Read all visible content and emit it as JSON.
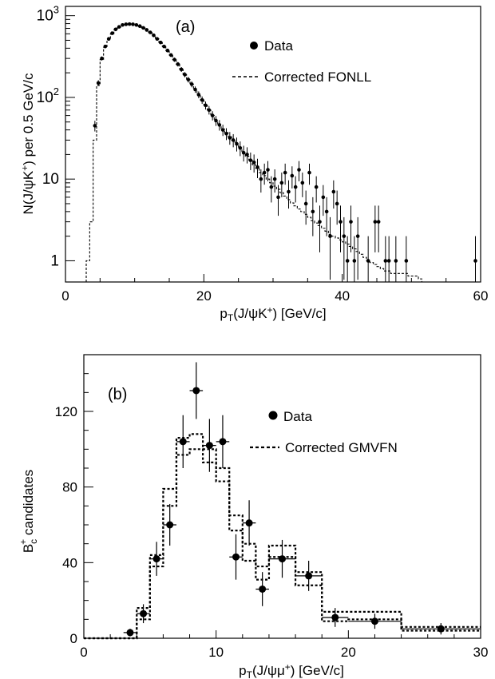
{
  "chart_data": [
    {
      "type": "scatter",
      "panel_label": "(a)",
      "xlabel": "p_T(J/ψK⁺) [GeV/c]",
      "ylabel": "N(J/ψK⁺) per 0.5 GeV/c",
      "xlim": [
        0,
        60
      ],
      "ylim": [
        0.55,
        1300
      ],
      "yscale": "log",
      "x_ticks": [
        0,
        20,
        40,
        60
      ],
      "y_ticks": [
        {
          "value": 1,
          "label": "1"
        },
        {
          "value": 10,
          "label": "10"
        },
        {
          "value": 100,
          "label": "10²"
        },
        {
          "value": 1000,
          "label": "10³"
        }
      ],
      "grid": false,
      "legend_position": "top-right",
      "series": [
        {
          "name": "Data",
          "style": "points",
          "points": [
            [
              4.25,
              45
            ],
            [
              4.75,
              150
            ],
            [
              5.25,
              300
            ],
            [
              5.75,
              420
            ],
            [
              6.25,
              520
            ],
            [
              6.75,
              610
            ],
            [
              7.25,
              680
            ],
            [
              7.75,
              730
            ],
            [
              8.25,
              770
            ],
            [
              8.75,
              785
            ],
            [
              9.25,
              790
            ],
            [
              9.75,
              785
            ],
            [
              10.25,
              770
            ],
            [
              10.75,
              745
            ],
            [
              11.25,
              710
            ],
            [
              11.75,
              670
            ],
            [
              12.25,
              625
            ],
            [
              12.75,
              575
            ],
            [
              13.25,
              520
            ],
            [
              13.75,
              470
            ],
            [
              14.25,
              420
            ],
            [
              14.75,
              375
            ],
            [
              15.25,
              330
            ],
            [
              15.75,
              290
            ],
            [
              16.25,
              255
            ],
            [
              16.75,
              220
            ],
            [
              17.25,
              190
            ],
            [
              17.75,
              165
            ],
            [
              18.25,
              145
            ],
            [
              18.75,
              125
            ],
            [
              19.25,
              108
            ],
            [
              19.75,
              93
            ],
            [
              20.25,
              80
            ],
            [
              20.75,
              70
            ],
            [
              21.25,
              60
            ],
            [
              21.75,
              52
            ],
            [
              22.25,
              46
            ],
            [
              22.75,
              40
            ],
            [
              23.25,
              36
            ],
            [
              23.75,
              32
            ],
            [
              24.25,
              30
            ],
            [
              24.75,
              27
            ],
            [
              25.25,
              24
            ],
            [
              25.75,
              21
            ],
            [
              26.25,
              20
            ],
            [
              26.75,
              17
            ],
            [
              27.25,
              16
            ],
            [
              27.75,
              14
            ],
            [
              28.25,
              10
            ],
            [
              28.75,
              12
            ],
            [
              29.25,
              13
            ],
            [
              29.75,
              8
            ],
            [
              30.25,
              10
            ],
            [
              30.75,
              6
            ],
            [
              31.25,
              9
            ],
            [
              31.75,
              12
            ],
            [
              32.25,
              7
            ],
            [
              32.75,
              11
            ],
            [
              33.25,
              8
            ],
            [
              33.75,
              13
            ],
            [
              34.25,
              9
            ],
            [
              34.75,
              5
            ],
            [
              35.25,
              12
            ],
            [
              35.75,
              4
            ],
            [
              36.25,
              8
            ],
            [
              36.75,
              3
            ],
            [
              37.25,
              6
            ],
            [
              37.75,
              4
            ],
            [
              38.25,
              2
            ],
            [
              38.75,
              7
            ],
            [
              39.25,
              5
            ],
            [
              39.75,
              3
            ],
            [
              40.25,
              2
            ],
            [
              40.75,
              1
            ],
            [
              41.25,
              3
            ],
            [
              41.75,
              1
            ],
            [
              42.25,
              2
            ],
            [
              43.75,
              1
            ],
            [
              44.75,
              3
            ],
            [
              45.25,
              3
            ],
            [
              46.25,
              1
            ],
            [
              46.75,
              1
            ],
            [
              47.75,
              1
            ],
            [
              49.25,
              1
            ],
            [
              59.25,
              1
            ]
          ]
        },
        {
          "name": "Corrected FONLL",
          "style": "dashed-step",
          "bin_width": 0.5,
          "bins": [
            [
              3.0,
              1.0
            ],
            [
              3.5,
              3.0
            ],
            [
              4.0,
              30
            ],
            [
              4.5,
              140
            ],
            [
              5.0,
              290
            ],
            [
              5.5,
              410
            ],
            [
              6.0,
              510
            ],
            [
              6.5,
              600
            ],
            [
              7.0,
              670
            ],
            [
              7.5,
              725
            ],
            [
              8.0,
              765
            ],
            [
              8.5,
              780
            ],
            [
              9.0,
              790
            ],
            [
              9.5,
              785
            ],
            [
              10.0,
              770
            ],
            [
              10.5,
              745
            ],
            [
              11.0,
              710
            ],
            [
              11.5,
              670
            ],
            [
              12.0,
              625
            ],
            [
              12.5,
              575
            ],
            [
              13.0,
              520
            ],
            [
              13.5,
              470
            ],
            [
              14.0,
              420
            ],
            [
              14.5,
              375
            ],
            [
              15.0,
              330
            ],
            [
              15.5,
              290
            ],
            [
              16.0,
              255
            ],
            [
              16.5,
              220
            ],
            [
              17.0,
              190
            ],
            [
              17.5,
              165
            ],
            [
              18.0,
              145
            ],
            [
              18.5,
              125
            ],
            [
              19.0,
              108
            ],
            [
              19.5,
              93
            ],
            [
              20.0,
              80
            ],
            [
              20.5,
              70
            ],
            [
              21.0,
              60
            ],
            [
              21.5,
              52
            ],
            [
              22.0,
              46
            ],
            [
              22.5,
              41
            ],
            [
              23.0,
              37
            ],
            [
              23.5,
              33
            ],
            [
              24.0,
              30
            ],
            [
              24.5,
              27
            ],
            [
              25.0,
              24
            ],
            [
              25.5,
              21
            ],
            [
              26.0,
              19
            ],
            [
              26.5,
              17
            ],
            [
              27.0,
              15
            ],
            [
              27.5,
              13.5
            ],
            [
              28.0,
              12
            ],
            [
              28.5,
              11
            ],
            [
              29.0,
              10
            ],
            [
              29.5,
              9
            ],
            [
              30.0,
              8.2
            ],
            [
              30.5,
              7.5
            ],
            [
              31.0,
              6.8
            ],
            [
              31.5,
              6.2
            ],
            [
              32.0,
              5.6
            ],
            [
              32.5,
              5.1
            ],
            [
              33.0,
              4.7
            ],
            [
              33.5,
              4.3
            ],
            [
              34.0,
              4.0
            ],
            [
              34.5,
              3.7
            ],
            [
              35.0,
              3.4
            ],
            [
              35.5,
              3.1
            ],
            [
              36.0,
              2.9
            ],
            [
              36.5,
              2.7
            ],
            [
              37.0,
              2.5
            ],
            [
              37.5,
              2.3
            ],
            [
              38.0,
              2.1
            ],
            [
              38.5,
              2.0
            ],
            [
              39.0,
              1.9
            ],
            [
              39.5,
              1.8
            ],
            [
              40.0,
              1.7
            ],
            [
              40.5,
              1.6
            ],
            [
              41.0,
              1.5
            ],
            [
              41.5,
              1.4
            ],
            [
              42.0,
              1.3
            ],
            [
              42.5,
              1.2
            ],
            [
              43.0,
              1.1
            ],
            [
              43.5,
              1.0
            ],
            [
              44.0,
              0.95
            ],
            [
              44.5,
              0.9
            ],
            [
              45.0,
              0.85
            ],
            [
              45.5,
              0.8
            ],
            [
              46.0,
              0.75
            ],
            [
              46.5,
              0.75
            ],
            [
              47.0,
              0.7
            ],
            [
              47.5,
              0.7
            ],
            [
              48.0,
              0.7
            ],
            [
              48.5,
              0.7
            ],
            [
              49.0,
              0.7
            ],
            [
              49.5,
              0.65
            ],
            [
              50.0,
              0.65
            ],
            [
              50.5,
              0.65
            ],
            [
              51.0,
              0.6
            ]
          ]
        }
      ]
    },
    {
      "type": "scatter",
      "panel_label": "(b)",
      "xlabel": "p_T(J/ψμ⁺) [GeV/c]",
      "ylabel": "B_c⁺ candidates",
      "xlim": [
        0,
        30
      ],
      "ylim": [
        0,
        150
      ],
      "x_ticks": [
        0,
        10,
        20,
        30
      ],
      "y_ticks": [
        0,
        40,
        80,
        120
      ],
      "grid": false,
      "legend_position": "top-right",
      "series": [
        {
          "name": "Data",
          "style": "points",
          "points": [
            {
              "x": 3.5,
              "y": 3,
              "xerr": 0.5,
              "yerr": 2
            },
            {
              "x": 4.5,
              "y": 13,
              "xerr": 0.5,
              "yerr": 5
            },
            {
              "x": 5.5,
              "y": 42,
              "xerr": 0.5,
              "yerr": 9
            },
            {
              "x": 6.5,
              "y": 60,
              "xerr": 0.5,
              "yerr": 11
            },
            {
              "x": 7.5,
              "y": 104,
              "xerr": 0.5,
              "yerr": 14
            },
            {
              "x": 8.5,
              "y": 131,
              "xerr": 0.5,
              "yerr": 15
            },
            {
              "x": 9.5,
              "y": 102,
              "xerr": 0.5,
              "yerr": 14
            },
            {
              "x": 10.5,
              "y": 104,
              "xerr": 0.5,
              "yerr": 14
            },
            {
              "x": 11.5,
              "y": 43,
              "xerr": 0.5,
              "yerr": 12
            },
            {
              "x": 12.5,
              "y": 61,
              "xerr": 0.5,
              "yerr": 12
            },
            {
              "x": 13.5,
              "y": 26,
              "xerr": 0.5,
              "yerr": 9
            },
            {
              "x": 15.0,
              "y": 42,
              "xerr": 1.0,
              "yerr": 10
            },
            {
              "x": 17.0,
              "y": 33,
              "xerr": 1.0,
              "yerr": 8
            },
            {
              "x": 19.0,
              "y": 11,
              "xerr": 1.0,
              "yerr": 5
            },
            {
              "x": 22.0,
              "y": 9,
              "xerr": 2.0,
              "yerr": 4
            },
            {
              "x": 27.0,
              "y": 5,
              "xerr": 3.0,
              "yerr": 3
            }
          ]
        },
        {
          "name": "Corrected GMVFN",
          "style": "dotted-step-band",
          "edges": [
            0,
            1,
            2,
            3,
            4,
            5,
            6,
            7,
            8,
            9,
            10,
            11,
            12,
            13,
            14,
            16,
            18,
            20,
            24,
            30
          ],
          "upper": [
            0,
            0,
            0,
            0,
            16,
            44,
            79,
            106,
            108,
            100,
            90,
            65,
            50,
            38,
            49,
            35,
            14,
            14,
            6
          ],
          "lower": [
            0,
            0,
            0,
            0,
            10,
            38,
            70,
            97,
            100,
            93,
            83,
            57,
            41,
            31,
            43,
            28,
            9,
            10,
            4
          ]
        }
      ]
    }
  ]
}
